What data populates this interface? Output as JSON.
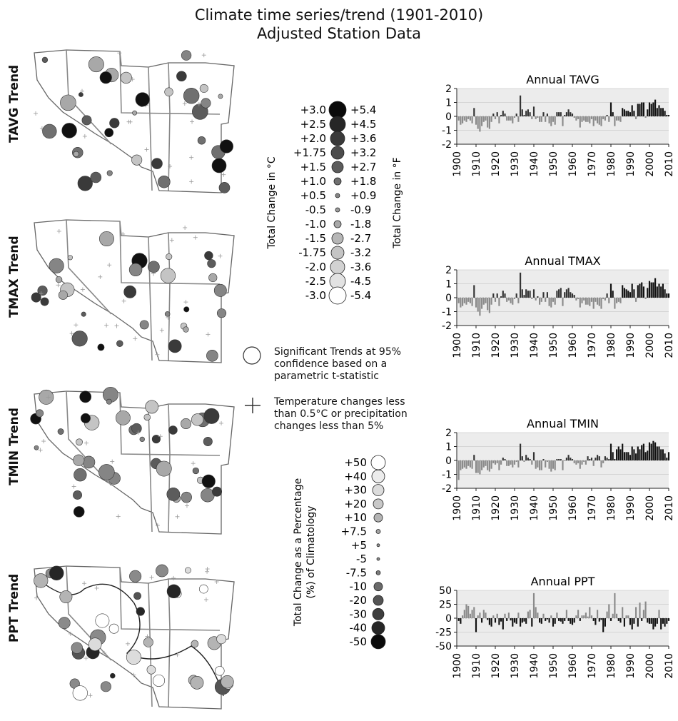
{
  "header": {
    "title_line1": "Climate time series/trend (1901-2010)",
    "title_line2": "Adjusted Station Data"
  },
  "maps": [
    {
      "label": "TAVG Trend"
    },
    {
      "label": "TMAX Trend"
    },
    {
      "label": "TMIN Trend"
    },
    {
      "label": "PPT Trend"
    }
  ],
  "temp_legend": {
    "c_axis_label": "Total Change in °C",
    "f_axis_label": "Total Change in °F",
    "celsius": [
      "+3.0",
      "+2.5",
      "+2.0",
      "+1.75",
      "+1.5",
      "+1.0",
      "+0.5",
      "-0.5",
      "-1.0",
      "-1.5",
      "-1.75",
      "-2.0",
      "-2.5",
      "-3.0"
    ],
    "fahrenheit": [
      "+5.4",
      "+4.5",
      "+3.6",
      "+3.2",
      "+2.7",
      "+1.8",
      "+0.9",
      "-0.9",
      "-1.8",
      "-2.7",
      "-3.2",
      "-3.6",
      "-4.5",
      "-5.4"
    ],
    "colors": [
      "#0a0a0a",
      "#262626",
      "#3a3a3a",
      "#4c4c4c",
      "#5c5c5c",
      "#707070",
      "#858585",
      "#9a9a9a",
      "#a8a8a8",
      "#b6b6b6",
      "#c4c4c4",
      "#d2d2d2",
      "#e2e2e2",
      "#ffffff"
    ]
  },
  "notes": {
    "significant": [
      "Significant Trends at 95%",
      "confidence based on a",
      "parametric t-statistic"
    ],
    "small_change": [
      "Temperature changes less",
      "than 0.5°C or precipitation",
      "changes less than 5%"
    ]
  },
  "ppt_legend": {
    "axis_label_line1": "Total Change as a Percentage",
    "axis_label_line2": "(%) of Climatology",
    "values": [
      "+50",
      "+40",
      "+30",
      "+20",
      "+10",
      "+7.5",
      "+5",
      "-5",
      "-7.5",
      "-10",
      "-20",
      "-30",
      "-40",
      "-50"
    ],
    "colors": [
      "#ffffff",
      "#ececec",
      "#dcdcdc",
      "#c8c8c8",
      "#b4b4b4",
      "#a4a4a4",
      "#969696",
      "#8a8a8a",
      "#7c7c7c",
      "#6a6a6a",
      "#545454",
      "#3e3e3e",
      "#262626",
      "#0a0a0a"
    ]
  },
  "chart_data": [
    {
      "type": "bar",
      "title": "Annual TAVG",
      "x": [
        1901,
        1902,
        1903,
        1904,
        1905,
        1906,
        1907,
        1908,
        1909,
        1910,
        1911,
        1912,
        1913,
        1914,
        1915,
        1916,
        1917,
        1918,
        1919,
        1920,
        1921,
        1922,
        1923,
        1924,
        1925,
        1926,
        1927,
        1928,
        1929,
        1930,
        1931,
        1932,
        1933,
        1934,
        1935,
        1936,
        1937,
        1938,
        1939,
        1940,
        1941,
        1942,
        1943,
        1944,
        1945,
        1946,
        1947,
        1948,
        1949,
        1950,
        1951,
        1952,
        1953,
        1954,
        1955,
        1956,
        1957,
        1958,
        1959,
        1960,
        1961,
        1962,
        1963,
        1964,
        1965,
        1966,
        1967,
        1968,
        1969,
        1970,
        1971,
        1972,
        1973,
        1974,
        1975,
        1976,
        1977,
        1978,
        1979,
        1980,
        1981,
        1982,
        1983,
        1984,
        1985,
        1986,
        1987,
        1988,
        1989,
        1990,
        1991,
        1992,
        1993,
        1994,
        1995,
        1996,
        1997,
        1998,
        1999,
        2000,
        2001,
        2002,
        2003,
        2004,
        2005,
        2006,
        2007,
        2008,
        2009,
        2010
      ],
      "values": [
        -0.3,
        -0.6,
        -0.5,
        -0.3,
        -0.4,
        -0.2,
        -0.3,
        -0.5,
        0.6,
        -0.6,
        -0.9,
        -1.1,
        -0.7,
        -0.4,
        -0.3,
        -0.8,
        -0.9,
        -0.4,
        0.2,
        -0.2,
        0.3,
        -0.5,
        0.1,
        0.4,
        0.2,
        -0.3,
        -0.3,
        -0.3,
        -0.5,
        -0.1,
        0.2,
        -0.4,
        1.5,
        0.5,
        0.1,
        0.4,
        0.5,
        0.3,
        -0.2,
        0.7,
        -0.2,
        -0.1,
        -0.4,
        -0.4,
        0.3,
        -0.4,
        0.2,
        -0.5,
        -0.7,
        -0.4,
        -0.6,
        0.3,
        0.3,
        0.3,
        -0.7,
        0.1,
        0.3,
        0.5,
        0.3,
        0.2,
        -0.1,
        -0.3,
        -0.2,
        -0.8,
        -0.4,
        -0.3,
        -0.4,
        -0.4,
        -0.5,
        -0.2,
        -0.7,
        -0.3,
        -0.5,
        -0.6,
        -0.7,
        -0.2,
        -0.3,
        0.1,
        -0.4,
        1.0,
        0.3,
        -0.7,
        -0.3,
        -0.3,
        -0.4,
        0.6,
        0.5,
        0.4,
        0.4,
        0.3,
        0.8,
        0.4,
        -0.2,
        0.9,
        0.9,
        1.0,
        1.0,
        -0.1,
        0.5,
        1.0,
        0.9,
        1.0,
        1.2,
        0.6,
        0.8,
        0.6,
        0.6,
        0.4,
        0.1,
        0.1
      ],
      "ylim": [
        -2,
        2
      ],
      "yticks": [
        -2,
        -1,
        0,
        1,
        2
      ],
      "xticks": [
        1900,
        1910,
        1920,
        1930,
        1940,
        1950,
        1960,
        1970,
        1980,
        1990,
        2000,
        2010
      ]
    },
    {
      "type": "bar",
      "title": "Annual TMAX",
      "x": [
        1901,
        1902,
        1903,
        1904,
        1905,
        1906,
        1907,
        1908,
        1909,
        1910,
        1911,
        1912,
        1913,
        1914,
        1915,
        1916,
        1917,
        1918,
        1919,
        1920,
        1921,
        1922,
        1923,
        1924,
        1925,
        1926,
        1927,
        1928,
        1929,
        1930,
        1931,
        1932,
        1933,
        1934,
        1935,
        1936,
        1937,
        1938,
        1939,
        1940,
        1941,
        1942,
        1943,
        1944,
        1945,
        1946,
        1947,
        1948,
        1949,
        1950,
        1951,
        1952,
        1953,
        1954,
        1955,
        1956,
        1957,
        1958,
        1959,
        1960,
        1961,
        1962,
        1963,
        1964,
        1965,
        1966,
        1967,
        1968,
        1969,
        1970,
        1971,
        1972,
        1973,
        1974,
        1975,
        1976,
        1977,
        1978,
        1979,
        1980,
        1981,
        1982,
        1983,
        1984,
        1985,
        1986,
        1987,
        1988,
        1989,
        1990,
        1991,
        1992,
        1993,
        1994,
        1995,
        1996,
        1997,
        1998,
        1999,
        2000,
        2001,
        2002,
        2003,
        2004,
        2005,
        2006,
        2007,
        2008,
        2009,
        2010
      ],
      "values": [
        -0.4,
        -0.7,
        -0.6,
        -0.4,
        -0.5,
        -0.3,
        -0.4,
        -0.6,
        0.9,
        -0.7,
        -1.0,
        -1.3,
        -0.8,
        -0.5,
        -0.4,
        -0.9,
        -1.1,
        -0.5,
        0.3,
        -0.3,
        0.3,
        -0.6,
        0.1,
        0.5,
        0.3,
        -0.3,
        -0.2,
        -0.4,
        -0.5,
        -0.1,
        0.3,
        -0.4,
        1.8,
        0.6,
        0.2,
        0.6,
        0.5,
        0.5,
        -0.1,
        0.6,
        -0.2,
        0.1,
        -0.5,
        -0.3,
        0.4,
        -0.3,
        0.4,
        -0.6,
        -0.7,
        -0.3,
        -0.5,
        0.5,
        0.6,
        0.7,
        -0.6,
        0.4,
        0.6,
        0.7,
        0.4,
        0.3,
        0.2,
        -0.2,
        -0.1,
        -0.7,
        -0.4,
        -0.2,
        -0.5,
        -0.5,
        -0.6,
        -0.3,
        -0.8,
        -0.3,
        -0.5,
        -0.6,
        -0.8,
        -0.1,
        -0.2,
        0.3,
        -0.4,
        1.0,
        0.5,
        -0.8,
        -0.4,
        -0.3,
        -0.4,
        0.9,
        0.7,
        0.6,
        0.5,
        0.4,
        1.0,
        0.6,
        -0.3,
        0.9,
        1.0,
        1.1,
        0.8,
        -0.1,
        0.7,
        1.2,
        1.1,
        1.1,
        1.4,
        0.8,
        1.0,
        0.8,
        1.0,
        0.6,
        0.3,
        0.3
      ],
      "ylim": [
        -2,
        2
      ],
      "yticks": [
        -2,
        -1,
        0,
        1,
        2
      ],
      "xticks": [
        1900,
        1910,
        1920,
        1930,
        1940,
        1950,
        1960,
        1970,
        1980,
        1990,
        2000,
        2010
      ]
    },
    {
      "type": "bar",
      "title": "Annual TMIN",
      "x": [
        1901,
        1902,
        1903,
        1904,
        1905,
        1906,
        1907,
        1908,
        1909,
        1910,
        1911,
        1912,
        1913,
        1914,
        1915,
        1916,
        1917,
        1918,
        1919,
        1920,
        1921,
        1922,
        1923,
        1924,
        1925,
        1926,
        1927,
        1928,
        1929,
        1930,
        1931,
        1932,
        1933,
        1934,
        1935,
        1936,
        1937,
        1938,
        1939,
        1940,
        1941,
        1942,
        1943,
        1944,
        1945,
        1946,
        1947,
        1948,
        1949,
        1950,
        1951,
        1952,
        1953,
        1954,
        1955,
        1956,
        1957,
        1958,
        1959,
        1960,
        1961,
        1962,
        1963,
        1964,
        1965,
        1966,
        1967,
        1968,
        1969,
        1970,
        1971,
        1972,
        1973,
        1974,
        1975,
        1976,
        1977,
        1978,
        1979,
        1980,
        1981,
        1982,
        1983,
        1984,
        1985,
        1986,
        1987,
        1988,
        1989,
        1990,
        1991,
        1992,
        1993,
        1994,
        1995,
        1996,
        1997,
        1998,
        1999,
        2000,
        2001,
        2002,
        2003,
        2004,
        2005,
        2006,
        2007,
        2008,
        2009,
        2010
      ],
      "values": [
        -1.4,
        -0.7,
        -0.6,
        -0.5,
        -0.6,
        -0.4,
        -0.5,
        -0.6,
        0.4,
        -0.9,
        -0.9,
        -1.0,
        -0.7,
        -0.5,
        -0.4,
        -0.7,
        -0.8,
        -0.6,
        -0.2,
        -0.3,
        -0.2,
        -0.7,
        -0.3,
        0.2,
        0.1,
        -0.4,
        -0.4,
        -0.3,
        -0.5,
        -0.3,
        -0.1,
        -0.5,
        1.2,
        0.3,
        -0.1,
        0.4,
        0.2,
        0.1,
        -0.3,
        0.6,
        -0.6,
        -0.5,
        -0.7,
        -0.7,
        0.1,
        -0.5,
        -0.1,
        -0.6,
        -0.8,
        -0.6,
        -0.7,
        0.1,
        0.1,
        0.1,
        -0.7,
        0.0,
        0.2,
        0.4,
        0.2,
        0.1,
        -0.2,
        -0.3,
        -0.2,
        -0.6,
        -0.3,
        -0.1,
        -0.3,
        0.3,
        0.1,
        0.2,
        -0.4,
        0.2,
        0.4,
        0.3,
        -0.5,
        -0.2,
        0.3,
        0.2,
        0.1,
        1.2,
        0.6,
        0.1,
        0.8,
        1.0,
        0.8,
        1.2,
        0.6,
        0.6,
        0.6,
        0.4,
        1.0,
        0.8,
        0.5,
        1.0,
        0.8,
        1.1,
        1.2,
        0.6,
        0.7,
        1.3,
        1.2,
        1.4,
        1.3,
        1.0,
        1.0,
        0.8,
        0.8,
        0.5,
        0.2,
        0.6
      ],
      "ylim": [
        -2,
        2
      ],
      "yticks": [
        -2,
        -1,
        0,
        1,
        2
      ],
      "xticks": [
        1900,
        1910,
        1920,
        1930,
        1940,
        1950,
        1960,
        1970,
        1980,
        1990,
        2000,
        2010
      ]
    },
    {
      "type": "bar",
      "title": "Annual PPT",
      "x": [
        1901,
        1902,
        1903,
        1904,
        1905,
        1906,
        1907,
        1908,
        1909,
        1910,
        1911,
        1912,
        1913,
        1914,
        1915,
        1916,
        1917,
        1918,
        1919,
        1920,
        1921,
        1922,
        1923,
        1924,
        1925,
        1926,
        1927,
        1928,
        1929,
        1930,
        1931,
        1932,
        1933,
        1934,
        1935,
        1936,
        1937,
        1938,
        1939,
        1940,
        1941,
        1942,
        1943,
        1944,
        1945,
        1946,
        1947,
        1948,
        1949,
        1950,
        1951,
        1952,
        1953,
        1954,
        1955,
        1956,
        1957,
        1958,
        1959,
        1960,
        1961,
        1962,
        1963,
        1964,
        1965,
        1966,
        1967,
        1968,
        1969,
        1970,
        1971,
        1972,
        1973,
        1974,
        1975,
        1976,
        1977,
        1978,
        1979,
        1980,
        1981,
        1982,
        1983,
        1984,
        1985,
        1986,
        1987,
        1988,
        1989,
        1990,
        1991,
        1992,
        1993,
        1994,
        1995,
        1996,
        1997,
        1998,
        1999,
        2000,
        2001,
        2002,
        2003,
        2004,
        2005,
        2006,
        2007,
        2008,
        2009,
        2010
      ],
      "values": [
        -5,
        -10,
        5,
        15,
        25,
        22,
        8,
        15,
        20,
        -25,
        5,
        10,
        -8,
        15,
        10,
        -3,
        -12,
        -15,
        5,
        -8,
        8,
        -12,
        -6,
        -20,
        8,
        -5,
        10,
        -4,
        -15,
        -8,
        -10,
        10,
        -15,
        -8,
        -6,
        -10,
        12,
        15,
        -15,
        45,
        20,
        10,
        -8,
        -10,
        8,
        -5,
        -2,
        -8,
        5,
        -15,
        -10,
        10,
        -5,
        -6,
        -10,
        -5,
        15,
        -5,
        -10,
        -12,
        -8,
        5,
        15,
        -5,
        5,
        5,
        10,
        3,
        20,
        5,
        -5,
        -12,
        15,
        -6,
        -3,
        -25,
        -15,
        12,
        25,
        -5,
        8,
        45,
        8,
        -5,
        -8,
        20,
        -15,
        5,
        5,
        -12,
        -20,
        -10,
        20,
        -15,
        28,
        -5,
        15,
        30,
        -8,
        -10,
        -10,
        -20,
        -15,
        -10,
        15,
        -20,
        -10,
        -15,
        -10,
        -5
      ],
      "ylim": [
        -50,
        50
      ],
      "yticks": [
        -50,
        -25,
        0,
        25,
        50
      ],
      "xticks": [
        1900,
        1910,
        1920,
        1930,
        1940,
        1950,
        1960,
        1970,
        1980,
        1990,
        2000,
        2010
      ]
    }
  ]
}
